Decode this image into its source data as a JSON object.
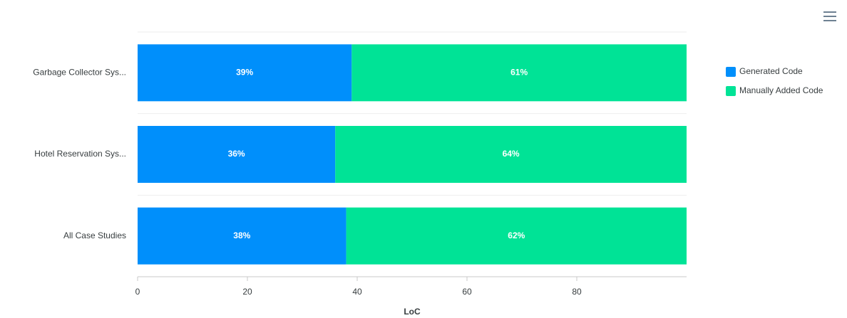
{
  "chart_data": {
    "type": "bar",
    "orientation": "horizontal",
    "stacked": true,
    "categories": [
      "Garbage Collector Sys...",
      "Hotel Reservation Sys...",
      "All Case Studies"
    ],
    "series": [
      {
        "name": "Generated Code",
        "color": "#008ffb",
        "values": [
          39,
          36,
          38
        ],
        "value_labels": [
          "39%",
          "36%",
          "38%"
        ]
      },
      {
        "name": "Manually Added Code",
        "color": "#00e396",
        "values": [
          61,
          64,
          62
        ],
        "value_labels": [
          "61%",
          "64%",
          "62%"
        ]
      }
    ],
    "x_label": "LoC",
    "xlim": [
      0,
      100
    ],
    "xticks": [
      0,
      20,
      40,
      60,
      80
    ],
    "legend": "right"
  }
}
